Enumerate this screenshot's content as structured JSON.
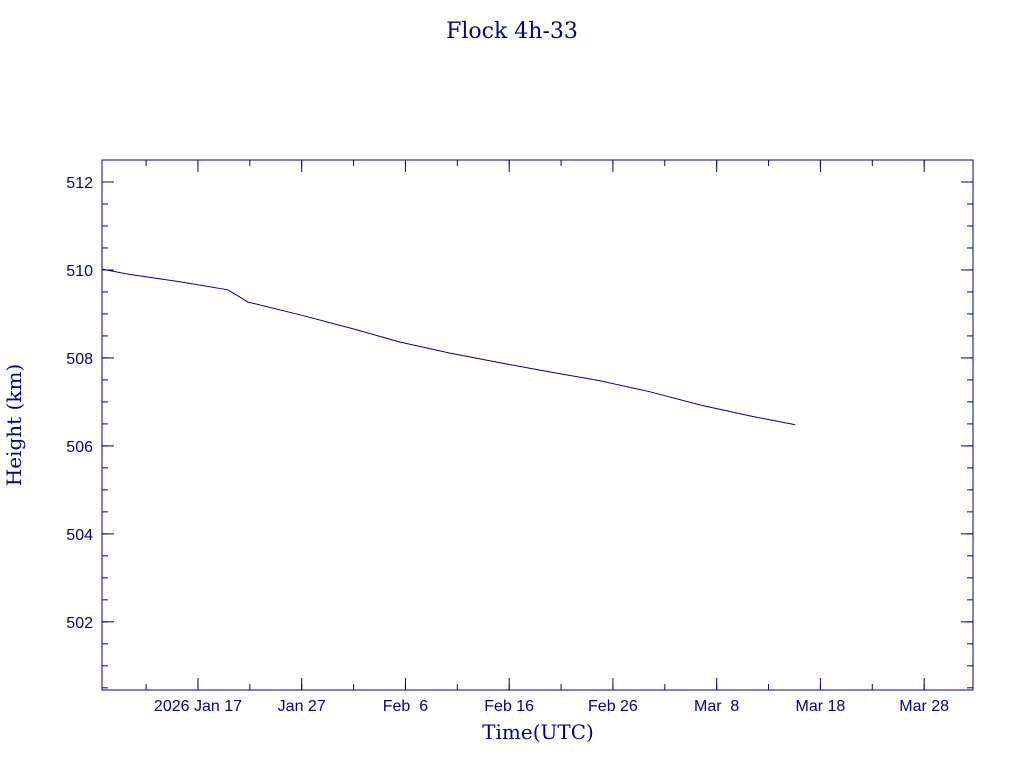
{
  "chart_data": {
    "type": "line",
    "title": "Flock 4h-33",
    "xlabel": "Time(UTC)",
    "ylabel": "Height (km)",
    "color": "#00008b",
    "xlim": [
      "2026-01-07T18:00",
      "2026-04-01T17:00"
    ],
    "ylim": [
      500.45,
      512.5
    ],
    "x_major_ticks": [
      "2026-01-17",
      "2026-01-27",
      "2026-02-06",
      "2026-02-16",
      "2026-02-26",
      "2026-03-08",
      "2026-03-18",
      "2026-03-28"
    ],
    "x_tick_labels": [
      "2026 Jan 17",
      "Jan 27",
      "Feb  6",
      "Feb 16",
      "Feb 26",
      "Mar  8",
      "Mar 18",
      "Mar 28"
    ],
    "x_minor_step_days": 5,
    "y_major_ticks": [
      502,
      504,
      506,
      508,
      510,
      512
    ],
    "y_tick_labels": [
      "502",
      "504",
      "506",
      "508",
      "510",
      "512"
    ],
    "y_minor_step": 0.5,
    "grid": false,
    "series": [
      {
        "x": [
          "2026-01-07T18:00",
          "2026-01-10T10:00",
          "2026-01-15T06:00",
          "2026-01-19T21:00",
          "2026-01-21T20:00",
          "2026-01-26T20:00",
          "2026-01-31T16:00",
          "2026-02-05T12:00",
          "2026-02-10T07:00",
          "2026-02-15T03:00",
          "2026-02-19T23:00",
          "2026-02-24T18:00",
          "2026-03-01T14:00",
          "2026-03-06T10:00",
          "2026-03-11T06:00",
          "2026-03-15T14:00"
        ],
        "y": [
          510.02,
          509.9,
          509.73,
          509.55,
          509.27,
          508.98,
          508.68,
          508.36,
          508.11,
          507.89,
          507.68,
          507.48,
          507.23,
          506.93,
          506.68,
          506.48
        ]
      }
    ]
  }
}
